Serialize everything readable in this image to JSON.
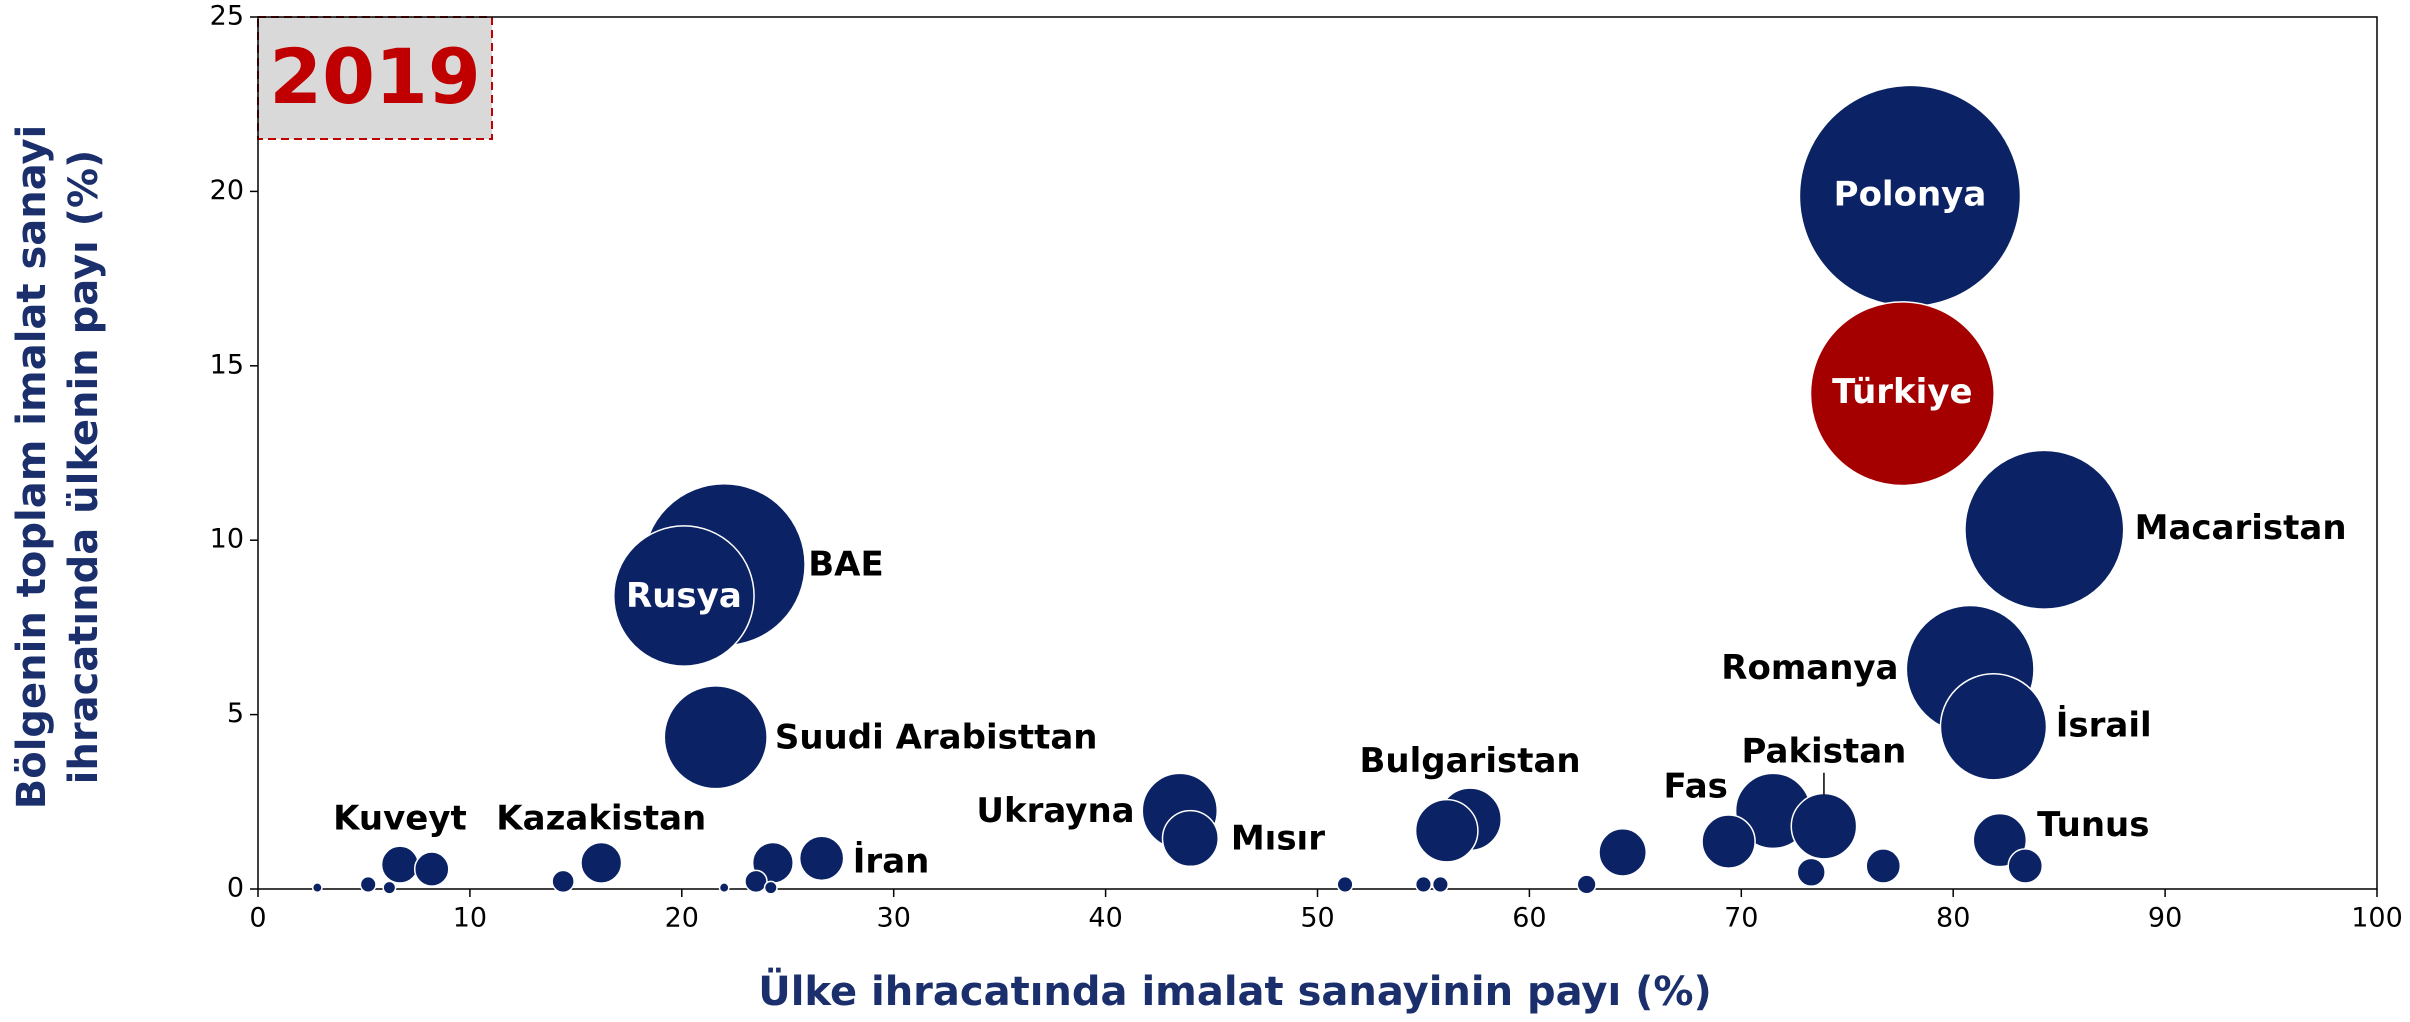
{
  "chart_data": {
    "type": "bubble",
    "annotation": "2019",
    "xlabel": "Ülke ihracatında imalat sanayinin payı (%)",
    "ylabel": [
      "Bölgenin toplam imalat sanayi",
      "ihracatında ülkenin payı (%)"
    ],
    "xlim": [
      0,
      100
    ],
    "xticks": [
      0,
      10,
      20,
      30,
      40,
      50,
      60,
      70,
      80,
      90,
      100
    ],
    "ylim": [
      0,
      25
    ],
    "yticks": [
      0,
      5,
      10,
      15,
      20,
      25
    ],
    "grid": false,
    "color": "#0b2265",
    "highlight": 1,
    "highlight_color": "#a50000",
    "labels": [
      "Polonya",
      "Türkiye",
      "Macaristan",
      "Romanya",
      "İsrail",
      "BAE",
      "Rusya",
      "Suudi Arabisttan",
      "Ukrayna",
      "Mısır",
      "Bulgaristan",
      "Fas",
      "Pakistan",
      "Tunus",
      "Kuveyt",
      "Kazakistan",
      "İran",
      null,
      null,
      null,
      null,
      null,
      null,
      null,
      null,
      null,
      null,
      null,
      null,
      null,
      null,
      null,
      null,
      null,
      null,
      null
    ],
    "x": [
      77.96,
      77.6,
      84.3,
      80.8,
      81.9,
      22.0,
      20.1,
      21.6,
      43.5,
      44.0,
      57.2,
      71.5,
      73.9,
      82.2,
      6.7,
      16.2,
      26.6,
      56.1,
      69.4,
      64.4,
      76.7,
      73.3,
      83.4,
      62.7,
      55.0,
      55.8,
      51.3,
      8.2,
      14.4,
      24.3,
      23.5,
      24.2,
      5.2,
      6.2,
      2.8,
      22.0
    ],
    "values": [
      19.87,
      14.2,
      10.3,
      6.3,
      4.65,
      9.3,
      8.4,
      4.35,
      2.24,
      1.45,
      2.0,
      2.24,
      1.8,
      1.4,
      0.7,
      0.75,
      0.88,
      1.67,
      1.36,
      1.05,
      0.66,
      0.48,
      0.66,
      0.13,
      0.13,
      0.13,
      0.13,
      0.57,
      0.22,
      0.75,
      0.22,
      0.04,
      0.13,
      0.04,
      0.04,
      0.04
    ],
    "sizes": [
      50.4,
      34.8,
      26.0,
      16.8,
      11.6,
      27.0,
      20.3,
      10.9,
      5.8,
      3.2,
      4.0,
      5.8,
      4.4,
      2.9,
      1.4,
      1.7,
      2.0,
      4.0,
      2.9,
      2.3,
      1.2,
      0.8,
      1.2,
      0.36,
      0.25,
      0.25,
      0.25,
      1.2,
      0.5,
      1.7,
      0.5,
      0.16,
      0.25,
      0.16,
      0.09,
      0.09
    ]
  }
}
